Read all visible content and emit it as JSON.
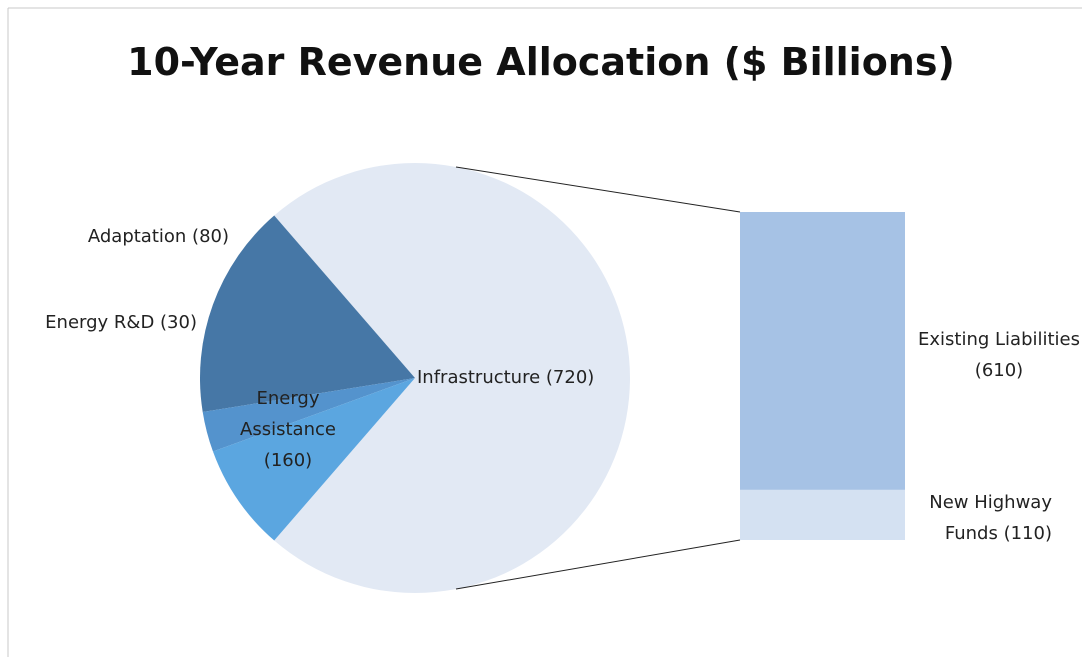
{
  "chart_data": {
    "type": "pie",
    "title": "10-Year Revenue Allocation ($ Billions)",
    "values": [
      720,
      160,
      30,
      80
    ],
    "value_labels": [
      "Infrastructure (720)",
      "Energy Assistance (160)",
      "Energy R&D (30)",
      "Adaptation (80)"
    ],
    "colors": [
      "#e2e9f4",
      "#4677a6",
      "#5493cd",
      "#5ba6e0"
    ],
    "breakdown": {
      "values": [
        610,
        110
      ],
      "value_labels": [
        "Existing Liabilities (610)",
        "New Highway Funds (110)"
      ],
      "colors": [
        "#a6c2e5",
        "#d4e1f2"
      ]
    }
  }
}
